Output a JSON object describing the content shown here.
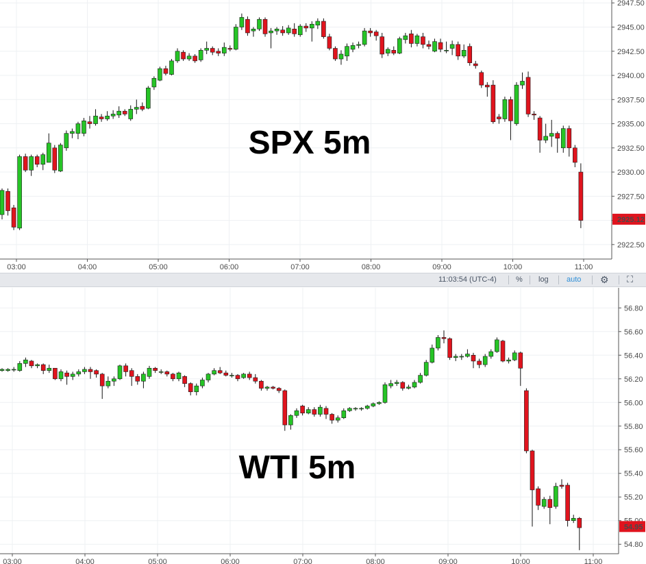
{
  "colors": {
    "up": "#26c426",
    "down": "#e0141e",
    "wick": "#111111",
    "grid": "#eef0f3",
    "axis_line": "#555555",
    "price_tag": "#e0141e",
    "toolbar_bg": "#e6e8ec",
    "toolbar_accent": "#2e8fd8"
  },
  "toolbar": {
    "time": "11:03:54 (UTC-4)",
    "percent": "%",
    "log": "log",
    "auto": "auto",
    "settings_icon": "gear-icon",
    "fullscreen_icon": "expand-icon"
  },
  "chart_data": [
    {
      "type": "candlestick",
      "label": "SPX 5m",
      "ylim": [
        2921.0,
        2947.8
      ],
      "y_ticks": [
        2922.5,
        2925.0,
        2927.5,
        2930.0,
        2932.5,
        2935.0,
        2937.5,
        2940.0,
        2942.5,
        2945.0,
        2947.5
      ],
      "y_tick_labels": [
        "2922.50",
        "2925.00",
        "2927.50",
        "2930.00",
        "2932.50",
        "2935.00",
        "2937.50",
        "2940.00",
        "2942.50",
        "2945.00",
        "2947.50"
      ],
      "x_tick_labels": [
        "03:00",
        "04:00",
        "05:00",
        "06:00",
        "07:00",
        "08:00",
        "09:00",
        "10:00",
        "11:00"
      ],
      "last_price": "2925.12",
      "candles": [
        [
          2925.6,
          2928.1,
          2925.1,
          2928.3
        ],
        [
          2928.0,
          2926.0,
          2925.5,
          2928.3
        ],
        [
          2926.3,
          2924.3,
          2924.0,
          2926.6
        ],
        [
          2924.2,
          2931.6,
          2924.0,
          2931.8
        ],
        [
          2931.6,
          2930.2,
          2930.0,
          2931.9
        ],
        [
          2930.2,
          2931.6,
          2929.6,
          2931.8
        ],
        [
          2931.6,
          2930.8,
          2930.5,
          2931.8
        ],
        [
          2930.8,
          2931.8,
          2930.2,
          2932.0
        ],
        [
          2931.0,
          2933.0,
          2931.0,
          2934.0
        ],
        [
          2932.5,
          2930.2,
          2929.9,
          2932.8
        ],
        [
          2930.1,
          2932.8,
          2930.0,
          2933.0
        ],
        [
          2932.5,
          2934.0,
          2932.2,
          2934.3
        ],
        [
          2934.0,
          2934.2,
          2933.5,
          2934.5
        ],
        [
          2934.0,
          2935.0,
          2933.4,
          2935.2
        ],
        [
          2934.0,
          2935.3,
          2933.7,
          2935.6
        ],
        [
          2935.2,
          2935.0,
          2934.5,
          2935.8
        ],
        [
          2935.0,
          2935.8,
          2934.8,
          2936.5
        ],
        [
          2935.7,
          2935.5,
          2935.2,
          2936.0
        ],
        [
          2935.5,
          2935.8,
          2935.3,
          2936.3
        ],
        [
          2935.8,
          2936.0,
          2935.5,
          2936.4
        ],
        [
          2935.9,
          2936.3,
          2935.6,
          2936.8
        ],
        [
          2936.3,
          2936.0,
          2935.8,
          2936.5
        ],
        [
          2935.5,
          2936.5,
          2935.3,
          2936.9
        ],
        [
          2936.5,
          2936.7,
          2936.0,
          2937.5
        ],
        [
          2936.8,
          2936.5,
          2936.3,
          2937.2
        ],
        [
          2936.6,
          2938.7,
          2936.5,
          2938.9
        ],
        [
          2938.8,
          2939.7,
          2938.5,
          2939.9
        ],
        [
          2939.5,
          2940.7,
          2939.4,
          2940.9
        ],
        [
          2940.7,
          2940.2,
          2940.0,
          2941.0
        ],
        [
          2940.1,
          2941.5,
          2940.0,
          2941.7
        ],
        [
          2941.5,
          2942.5,
          2941.3,
          2942.8
        ],
        [
          2942.4,
          2941.7,
          2941.5,
          2942.6
        ],
        [
          2941.7,
          2942.0,
          2941.5,
          2942.3
        ],
        [
          2942.0,
          2941.5,
          2941.3,
          2942.2
        ],
        [
          2941.6,
          2942.6,
          2941.4,
          2942.8
        ],
        [
          2942.6,
          2942.8,
          2942.2,
          2943.5
        ],
        [
          2942.8,
          2942.4,
          2942.1,
          2943.0
        ],
        [
          2942.5,
          2942.3,
          2942.0,
          2942.8
        ],
        [
          2942.3,
          2942.9,
          2942.0,
          2943.4
        ],
        [
          2942.8,
          2942.7,
          2942.5,
          2943.1
        ],
        [
          2942.7,
          2945.0,
          2942.6,
          2945.3
        ],
        [
          2945.0,
          2946.0,
          2944.7,
          2946.4
        ],
        [
          2945.8,
          2944.4,
          2944.1,
          2946.1
        ],
        [
          2944.6,
          2944.8,
          2944.0,
          2945.0
        ],
        [
          2944.8,
          2945.8,
          2944.6,
          2946.0
        ],
        [
          2945.8,
          2944.3,
          2944.0,
          2946.0
        ],
        [
          2944.4,
          2944.6,
          2942.8,
          2944.9
        ],
        [
          2944.6,
          2944.8,
          2944.2,
          2945.0
        ],
        [
          2944.7,
          2944.4,
          2944.1,
          2945.1
        ],
        [
          2944.4,
          2944.9,
          2944.2,
          2945.2
        ],
        [
          2944.8,
          2944.3,
          2944.0,
          2945.4
        ],
        [
          2944.2,
          2945.1,
          2944.0,
          2945.3
        ],
        [
          2945.1,
          2944.9,
          2944.5,
          2945.4
        ],
        [
          2944.9,
          2945.3,
          2943.5,
          2945.6
        ],
        [
          2945.2,
          2945.6,
          2944.8,
          2945.9
        ],
        [
          2945.6,
          2944.0,
          2943.8,
          2945.9
        ],
        [
          2944.0,
          2942.8,
          2942.6,
          2944.3
        ],
        [
          2942.8,
          2941.7,
          2941.5,
          2943.0
        ],
        [
          2941.7,
          2942.2,
          2941.1,
          2942.6
        ],
        [
          2942.0,
          2943.0,
          2941.5,
          2943.3
        ],
        [
          2942.7,
          2943.1,
          2942.4,
          2943.4
        ],
        [
          2943.1,
          2943.2,
          2942.8,
          2943.5
        ],
        [
          2943.2,
          2944.6,
          2943.0,
          2944.9
        ],
        [
          2944.6,
          2944.4,
          2944.0,
          2944.9
        ],
        [
          2944.5,
          2944.1,
          2943.6,
          2944.7
        ],
        [
          2944.0,
          2942.2,
          2941.8,
          2944.4
        ],
        [
          2942.3,
          2942.7,
          2942.0,
          2942.9
        ],
        [
          2942.6,
          2942.3,
          2942.1,
          2943.0
        ],
        [
          2942.3,
          2943.8,
          2942.2,
          2944.0
        ],
        [
          2943.7,
          2944.1,
          2943.3,
          2944.4
        ],
        [
          2944.3,
          2943.3,
          2942.9,
          2944.7
        ],
        [
          2943.3,
          2944.1,
          2943.0,
          2944.3
        ],
        [
          2944.0,
          2943.2,
          2942.8,
          2944.4
        ],
        [
          2943.2,
          2943.0,
          2942.7,
          2943.6
        ],
        [
          2942.5,
          2943.5,
          2942.4,
          2943.8
        ],
        [
          2943.4,
          2942.7,
          2942.4,
          2943.8
        ],
        [
          2942.6,
          2942.6,
          2942.3,
          2943.5
        ],
        [
          2942.8,
          2943.2,
          2942.1,
          2943.6
        ],
        [
          2943.2,
          2942.0,
          2941.6,
          2943.5
        ],
        [
          2942.0,
          2942.6,
          2941.8,
          2943.2
        ],
        [
          2943.0,
          2941.3,
          2941.0,
          2943.3
        ],
        [
          2941.2,
          2941.0,
          2940.7,
          2941.5
        ],
        [
          2940.3,
          2939.0,
          2938.7,
          2940.5
        ],
        [
          2939.0,
          2938.8,
          2937.8,
          2939.3
        ],
        [
          2939.0,
          2935.2,
          2935.0,
          2939.5
        ],
        [
          2935.7,
          2935.5,
          2935.0,
          2936.0
        ],
        [
          2935.5,
          2937.5,
          2935.2,
          2937.8
        ],
        [
          2937.5,
          2935.3,
          2933.3,
          2937.8
        ],
        [
          2935.0,
          2939.0,
          2934.8,
          2939.3
        ],
        [
          2939.0,
          2939.4,
          2938.6,
          2940.3
        ],
        [
          2939.8,
          2936.0,
          2935.7,
          2940.4
        ],
        [
          2936.0,
          2935.9,
          2935.4,
          2936.3
        ],
        [
          2935.6,
          2933.3,
          2932.0,
          2935.8
        ],
        [
          2933.3,
          2933.7,
          2933.0,
          2935.0
        ],
        [
          2933.7,
          2934.0,
          2932.6,
          2935.4
        ],
        [
          2934.0,
          2933.5,
          2932.0,
          2934.2
        ],
        [
          2932.5,
          2934.5,
          2932.0,
          2934.8
        ],
        [
          2934.5,
          2932.5,
          2931.6,
          2934.8
        ],
        [
          2932.5,
          2931.0,
          2930.5,
          2932.8
        ],
        [
          2930.0,
          2925.0,
          2924.2,
          2930.9
        ]
      ]
    },
    {
      "type": "candlestick",
      "label": "WTI 5m",
      "ylim": [
        54.72,
        56.97
      ],
      "y_ticks": [
        54.8,
        55.0,
        55.2,
        55.4,
        55.6,
        55.8,
        56.0,
        56.2,
        56.4,
        56.6,
        56.8
      ],
      "y_tick_labels": [
        "54.80",
        "55.00",
        "55.20",
        "55.40",
        "55.60",
        "55.80",
        "56.00",
        "56.20",
        "56.40",
        "56.60",
        "56.80"
      ],
      "x_tick_labels": [
        "03:00",
        "04:00",
        "05:00",
        "06:00",
        "07:00",
        "08:00",
        "09:00",
        "10:00",
        "11:00"
      ],
      "last_price": "54.95",
      "candles": [
        [
          56.27,
          56.28,
          56.26,
          56.29
        ],
        [
          56.27,
          56.28,
          56.26,
          56.29
        ],
        [
          56.28,
          56.28,
          56.26,
          56.3
        ],
        [
          56.27,
          56.33,
          56.26,
          56.35
        ],
        [
          56.33,
          56.36,
          56.3,
          56.38
        ],
        [
          56.35,
          56.31,
          56.29,
          56.36
        ],
        [
          56.31,
          56.32,
          56.29,
          56.33
        ],
        [
          56.32,
          56.27,
          56.24,
          56.33
        ],
        [
          56.27,
          56.29,
          56.25,
          56.32
        ],
        [
          56.29,
          56.2,
          56.19,
          56.29
        ],
        [
          56.2,
          56.26,
          56.18,
          56.28
        ],
        [
          56.25,
          56.22,
          56.15,
          56.27
        ],
        [
          56.22,
          56.24,
          56.19,
          56.26
        ],
        [
          56.24,
          56.26,
          56.22,
          56.28
        ],
        [
          56.26,
          56.28,
          56.24,
          56.3
        ],
        [
          56.28,
          56.26,
          56.2,
          56.3
        ],
        [
          56.27,
          56.24,
          56.21,
          56.28
        ],
        [
          56.24,
          56.14,
          56.03,
          56.25
        ],
        [
          56.14,
          56.18,
          56.12,
          56.22
        ],
        [
          56.18,
          56.2,
          56.14,
          56.22
        ],
        [
          56.2,
          56.31,
          56.19,
          56.32
        ],
        [
          56.31,
          56.26,
          56.22,
          56.33
        ],
        [
          56.27,
          56.22,
          56.14,
          56.29
        ],
        [
          56.22,
          56.18,
          56.15,
          56.24
        ],
        [
          56.18,
          56.24,
          56.12,
          56.26
        ],
        [
          56.22,
          56.29,
          56.2,
          56.31
        ],
        [
          56.29,
          56.27,
          56.25,
          56.3
        ],
        [
          56.26,
          56.26,
          56.24,
          56.28
        ],
        [
          56.26,
          56.24,
          56.22,
          56.27
        ],
        [
          56.24,
          56.2,
          56.18,
          56.25
        ],
        [
          56.2,
          56.25,
          56.18,
          56.26
        ],
        [
          56.22,
          56.16,
          56.13,
          56.23
        ],
        [
          56.16,
          56.09,
          56.06,
          56.17
        ],
        [
          56.09,
          56.14,
          56.06,
          56.16
        ],
        [
          56.14,
          56.19,
          56.12,
          56.21
        ],
        [
          56.19,
          56.24,
          56.17,
          56.25
        ],
        [
          56.24,
          56.27,
          56.23,
          56.29
        ],
        [
          56.27,
          56.25,
          56.24,
          56.3
        ],
        [
          56.25,
          56.23,
          56.22,
          56.27
        ],
        [
          56.23,
          56.23,
          56.21,
          56.25
        ],
        [
          56.23,
          56.2,
          56.18,
          56.24
        ],
        [
          56.21,
          56.24,
          56.2,
          56.25
        ],
        [
          56.24,
          56.21,
          56.19,
          56.26
        ],
        [
          56.21,
          56.18,
          56.16,
          56.24
        ],
        [
          56.18,
          56.12,
          56.1,
          56.19
        ],
        [
          56.12,
          56.13,
          56.1,
          56.14
        ],
        [
          56.13,
          56.12,
          56.11,
          56.14
        ],
        [
          56.12,
          56.1,
          56.08,
          56.13
        ],
        [
          56.1,
          55.81,
          55.76,
          56.11
        ],
        [
          55.81,
          55.89,
          55.77,
          55.9
        ],
        [
          55.89,
          55.93,
          55.87,
          55.95
        ],
        [
          55.97,
          55.91,
          55.89,
          55.98
        ],
        [
          55.91,
          55.94,
          55.9,
          55.96
        ],
        [
          55.94,
          55.9,
          55.88,
          55.96
        ],
        [
          55.9,
          55.96,
          55.88,
          55.98
        ],
        [
          55.95,
          55.9,
          55.86,
          55.97
        ],
        [
          55.9,
          55.85,
          55.82,
          55.91
        ],
        [
          55.85,
          55.87,
          55.83,
          55.89
        ],
        [
          55.87,
          55.93,
          55.86,
          55.95
        ],
        [
          55.93,
          55.95,
          55.92,
          55.96
        ],
        [
          55.95,
          55.95,
          55.93,
          55.96
        ],
        [
          55.95,
          55.95,
          55.93,
          55.96
        ],
        [
          55.95,
          55.97,
          55.94,
          55.98
        ],
        [
          55.97,
          55.99,
          55.96,
          56.0
        ],
        [
          55.99,
          56.0,
          55.98,
          56.01
        ],
        [
          56.0,
          56.15,
          55.99,
          56.17
        ],
        [
          56.14,
          56.16,
          56.12,
          56.19
        ],
        [
          56.16,
          56.17,
          56.14,
          56.19
        ],
        [
          56.17,
          56.12,
          56.1,
          56.18
        ],
        [
          56.12,
          56.13,
          56.11,
          56.15
        ],
        [
          56.13,
          56.17,
          56.12,
          56.19
        ],
        [
          56.17,
          56.23,
          56.16,
          56.25
        ],
        [
          56.23,
          56.34,
          56.22,
          56.36
        ],
        [
          56.34,
          56.46,
          56.33,
          56.49
        ],
        [
          56.46,
          56.55,
          56.44,
          56.57
        ],
        [
          56.55,
          56.54,
          56.5,
          56.61
        ],
        [
          56.54,
          56.38,
          56.36,
          56.55
        ],
        [
          56.38,
          56.39,
          56.35,
          56.41
        ],
        [
          56.39,
          56.39,
          56.36,
          56.41
        ],
        [
          56.39,
          56.41,
          56.38,
          56.45
        ],
        [
          56.4,
          56.35,
          56.29,
          56.42
        ],
        [
          56.35,
          56.32,
          56.29,
          56.37
        ],
        [
          56.32,
          56.39,
          56.3,
          56.41
        ],
        [
          56.39,
          56.43,
          56.37,
          56.45
        ],
        [
          56.43,
          56.53,
          56.42,
          56.55
        ],
        [
          56.52,
          56.35,
          56.34,
          56.53
        ],
        [
          56.35,
          56.36,
          56.33,
          56.38
        ],
        [
          56.36,
          56.42,
          56.35,
          56.44
        ],
        [
          56.42,
          56.29,
          56.14,
          56.43
        ],
        [
          56.1,
          55.59,
          55.57,
          56.12
        ],
        [
          55.59,
          55.26,
          54.95,
          55.6
        ],
        [
          55.27,
          55.13,
          55.09,
          55.29
        ],
        [
          55.12,
          55.18,
          55.1,
          55.2
        ],
        [
          55.18,
          55.11,
          54.97,
          55.21
        ],
        [
          55.12,
          55.29,
          55.1,
          55.32
        ],
        [
          55.3,
          55.29,
          55.27,
          55.35
        ],
        [
          55.3,
          55.0,
          54.95,
          55.32
        ],
        [
          55.0,
          55.02,
          54.98,
          55.05
        ],
        [
          55.02,
          54.94,
          54.75,
          55.03
        ]
      ]
    }
  ]
}
